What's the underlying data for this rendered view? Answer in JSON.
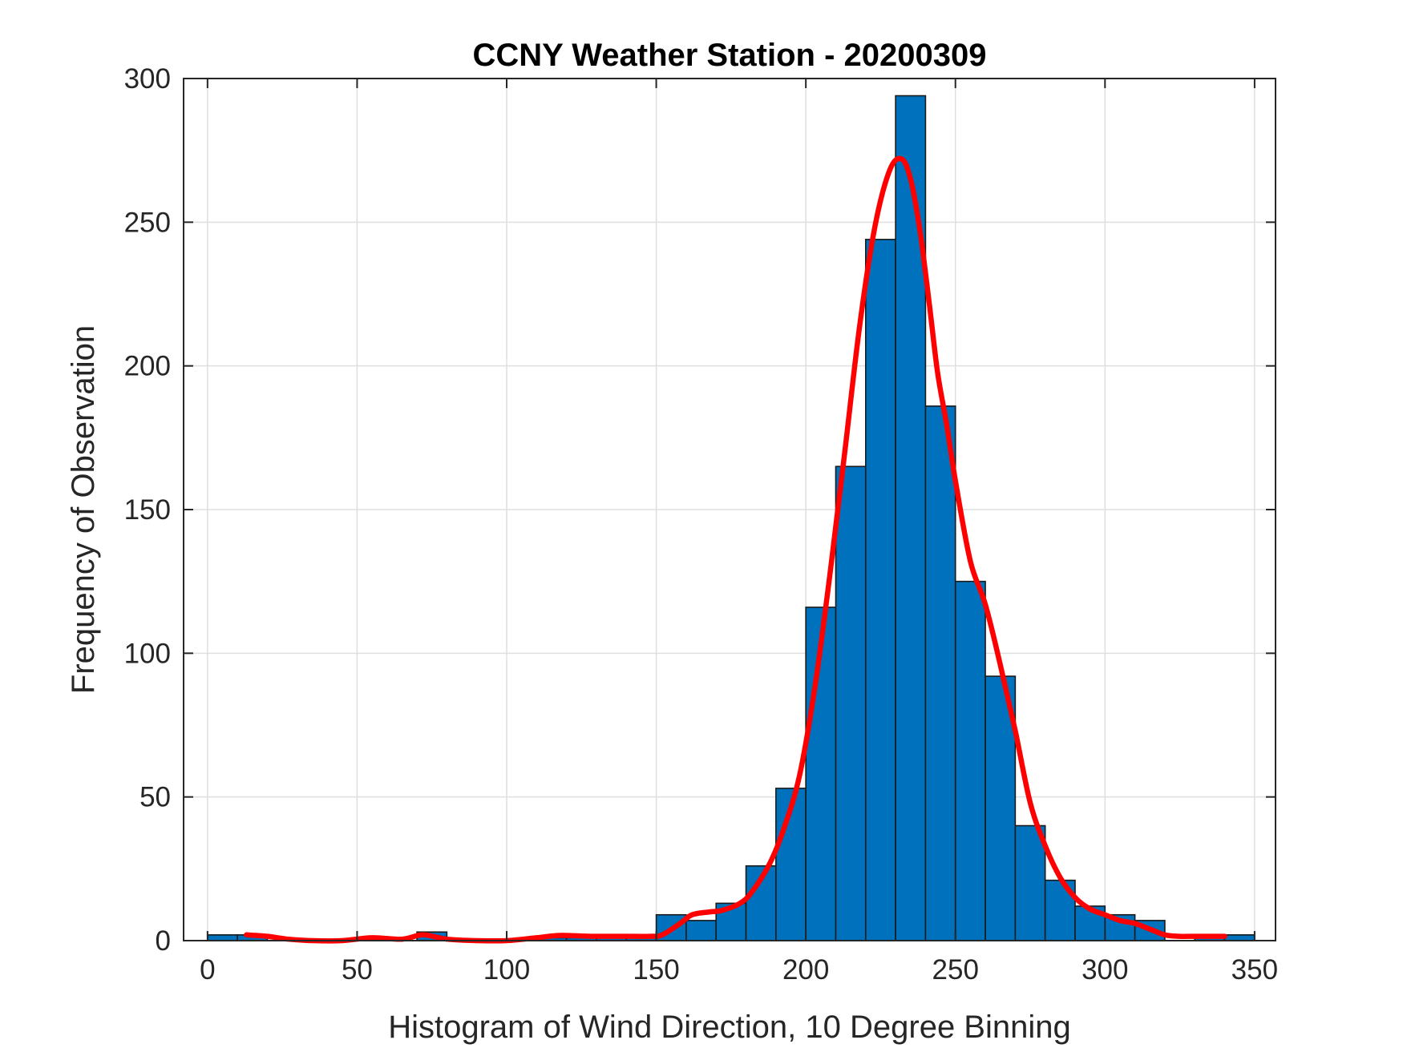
{
  "chart_data": {
    "type": "bar",
    "title": "CCNY Weather Station - 20200309",
    "xlabel": "Histogram of Wind Direction, 10 Degree Binning",
    "ylabel": "Frequency of Observation",
    "xlim": [
      -8,
      357
    ],
    "ylim": [
      0,
      300
    ],
    "xticks": [
      0,
      50,
      100,
      150,
      200,
      250,
      300,
      350
    ],
    "yticks": [
      0,
      50,
      100,
      150,
      200,
      250,
      300
    ],
    "grid": true,
    "bins": [
      {
        "start": 0,
        "end": 10,
        "count": 2
      },
      {
        "start": 10,
        "end": 20,
        "count": 2
      },
      {
        "start": 20,
        "end": 30,
        "count": 0
      },
      {
        "start": 30,
        "end": 40,
        "count": 0
      },
      {
        "start": 40,
        "end": 50,
        "count": 0
      },
      {
        "start": 50,
        "end": 60,
        "count": 1
      },
      {
        "start": 60,
        "end": 70,
        "count": 0
      },
      {
        "start": 70,
        "end": 80,
        "count": 3
      },
      {
        "start": 80,
        "end": 90,
        "count": 0
      },
      {
        "start": 90,
        "end": 100,
        "count": 0
      },
      {
        "start": 100,
        "end": 110,
        "count": 0
      },
      {
        "start": 110,
        "end": 120,
        "count": 1
      },
      {
        "start": 120,
        "end": 130,
        "count": 1
      },
      {
        "start": 130,
        "end": 140,
        "count": 1
      },
      {
        "start": 140,
        "end": 150,
        "count": 1
      },
      {
        "start": 150,
        "end": 160,
        "count": 9
      },
      {
        "start": 160,
        "end": 170,
        "count": 7
      },
      {
        "start": 170,
        "end": 180,
        "count": 13
      },
      {
        "start": 180,
        "end": 190,
        "count": 26
      },
      {
        "start": 190,
        "end": 200,
        "count": 53
      },
      {
        "start": 200,
        "end": 210,
        "count": 116
      },
      {
        "start": 210,
        "end": 220,
        "count": 165
      },
      {
        "start": 220,
        "end": 230,
        "count": 244
      },
      {
        "start": 230,
        "end": 240,
        "count": 294
      },
      {
        "start": 240,
        "end": 250,
        "count": 186
      },
      {
        "start": 250,
        "end": 260,
        "count": 125
      },
      {
        "start": 260,
        "end": 270,
        "count": 92
      },
      {
        "start": 270,
        "end": 280,
        "count": 40
      },
      {
        "start": 280,
        "end": 290,
        "count": 21
      },
      {
        "start": 290,
        "end": 300,
        "count": 12
      },
      {
        "start": 300,
        "end": 310,
        "count": 9
      },
      {
        "start": 310,
        "end": 320,
        "count": 7
      },
      {
        "start": 320,
        "end": 330,
        "count": 0
      },
      {
        "start": 330,
        "end": 340,
        "count": 2
      },
      {
        "start": 340,
        "end": 350,
        "count": 2
      }
    ],
    "fit_curve": {
      "x": [
        13,
        20,
        27,
        35,
        45,
        55,
        65,
        72,
        80,
        90,
        100,
        110,
        118,
        128,
        138,
        148,
        152,
        158,
        162,
        168,
        172,
        178,
        182,
        188,
        193,
        198,
        203,
        208,
        213,
        218,
        223,
        228,
        232,
        235,
        238,
        241,
        244,
        247,
        250,
        255,
        260,
        265,
        270,
        275,
        280,
        285,
        290,
        295,
        300,
        305,
        310,
        315,
        320,
        325,
        330,
        335,
        340
      ],
      "y": [
        2,
        1.5,
        0.5,
        0,
        0,
        1,
        0.5,
        2,
        0.5,
        0,
        0,
        1,
        1.8,
        1.5,
        1.5,
        1.5,
        2,
        6,
        9,
        10,
        10.5,
        13,
        17,
        27,
        40,
        58,
        88,
        127,
        170,
        214,
        248,
        268,
        272,
        265,
        248,
        224,
        198,
        180,
        160,
        132,
        117,
        96,
        73,
        48,
        33,
        22,
        15,
        11,
        9,
        7,
        6,
        4,
        2,
        1.5,
        1.5,
        1.5,
        1.5
      ]
    },
    "colors": {
      "bar_fill": "#0072BD",
      "bar_edge": "#1a1a1a",
      "fit_line": "#FF0000",
      "grid": "#dfdfdf",
      "axes": "#262626"
    }
  }
}
